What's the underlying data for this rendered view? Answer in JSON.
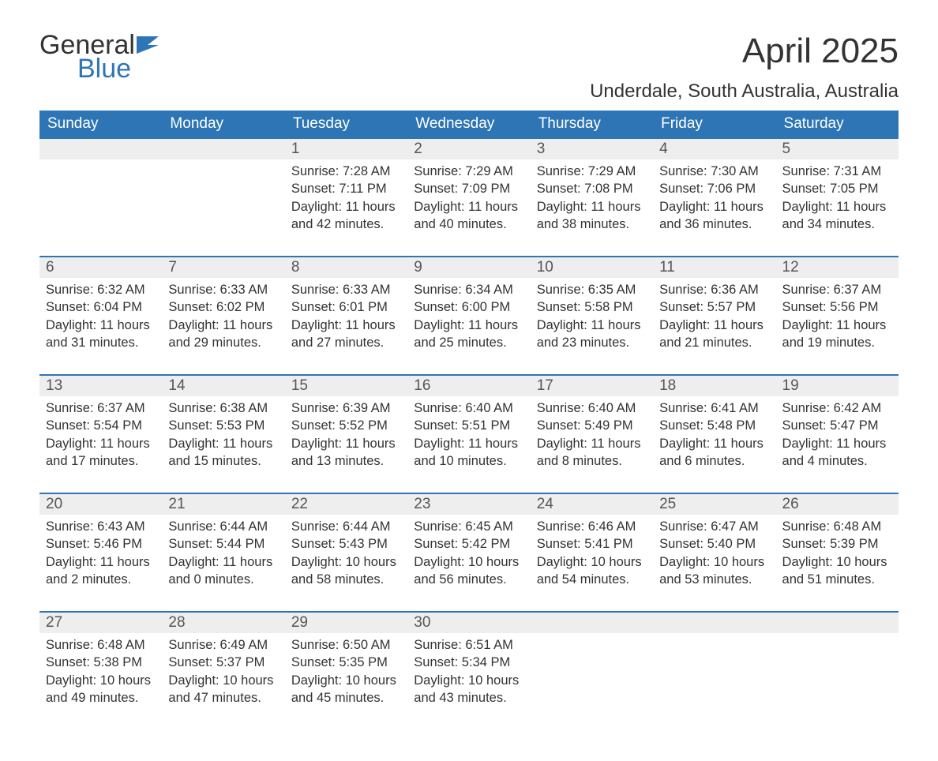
{
  "brand": {
    "word1": "General",
    "word2": "Blue",
    "text_color": "#333333",
    "accent_color": "#2e75b6"
  },
  "title": "April 2025",
  "location": "Underdale, South Australia, Australia",
  "colors": {
    "header_bg": "#2e75b6",
    "header_text": "#ffffff",
    "daynum_bg": "#eeeeee",
    "row_border": "#2e75b6",
    "body_text": "#333333",
    "page_bg": "#ffffff"
  },
  "weekdays": [
    "Sunday",
    "Monday",
    "Tuesday",
    "Wednesday",
    "Thursday",
    "Friday",
    "Saturday"
  ],
  "weeks": [
    [
      null,
      null,
      {
        "n": "1",
        "sunrise": "7:28 AM",
        "sunset": "7:11 PM",
        "daylight": "11 hours and 42 minutes."
      },
      {
        "n": "2",
        "sunrise": "7:29 AM",
        "sunset": "7:09 PM",
        "daylight": "11 hours and 40 minutes."
      },
      {
        "n": "3",
        "sunrise": "7:29 AM",
        "sunset": "7:08 PM",
        "daylight": "11 hours and 38 minutes."
      },
      {
        "n": "4",
        "sunrise": "7:30 AM",
        "sunset": "7:06 PM",
        "daylight": "11 hours and 36 minutes."
      },
      {
        "n": "5",
        "sunrise": "7:31 AM",
        "sunset": "7:05 PM",
        "daylight": "11 hours and 34 minutes."
      }
    ],
    [
      {
        "n": "6",
        "sunrise": "6:32 AM",
        "sunset": "6:04 PM",
        "daylight": "11 hours and 31 minutes."
      },
      {
        "n": "7",
        "sunrise": "6:33 AM",
        "sunset": "6:02 PM",
        "daylight": "11 hours and 29 minutes."
      },
      {
        "n": "8",
        "sunrise": "6:33 AM",
        "sunset": "6:01 PM",
        "daylight": "11 hours and 27 minutes."
      },
      {
        "n": "9",
        "sunrise": "6:34 AM",
        "sunset": "6:00 PM",
        "daylight": "11 hours and 25 minutes."
      },
      {
        "n": "10",
        "sunrise": "6:35 AM",
        "sunset": "5:58 PM",
        "daylight": "11 hours and 23 minutes."
      },
      {
        "n": "11",
        "sunrise": "6:36 AM",
        "sunset": "5:57 PM",
        "daylight": "11 hours and 21 minutes."
      },
      {
        "n": "12",
        "sunrise": "6:37 AM",
        "sunset": "5:56 PM",
        "daylight": "11 hours and 19 minutes."
      }
    ],
    [
      {
        "n": "13",
        "sunrise": "6:37 AM",
        "sunset": "5:54 PM",
        "daylight": "11 hours and 17 minutes."
      },
      {
        "n": "14",
        "sunrise": "6:38 AM",
        "sunset": "5:53 PM",
        "daylight": "11 hours and 15 minutes."
      },
      {
        "n": "15",
        "sunrise": "6:39 AM",
        "sunset": "5:52 PM",
        "daylight": "11 hours and 13 minutes."
      },
      {
        "n": "16",
        "sunrise": "6:40 AM",
        "sunset": "5:51 PM",
        "daylight": "11 hours and 10 minutes."
      },
      {
        "n": "17",
        "sunrise": "6:40 AM",
        "sunset": "5:49 PM",
        "daylight": "11 hours and 8 minutes."
      },
      {
        "n": "18",
        "sunrise": "6:41 AM",
        "sunset": "5:48 PM",
        "daylight": "11 hours and 6 minutes."
      },
      {
        "n": "19",
        "sunrise": "6:42 AM",
        "sunset": "5:47 PM",
        "daylight": "11 hours and 4 minutes."
      }
    ],
    [
      {
        "n": "20",
        "sunrise": "6:43 AM",
        "sunset": "5:46 PM",
        "daylight": "11 hours and 2 minutes."
      },
      {
        "n": "21",
        "sunrise": "6:44 AM",
        "sunset": "5:44 PM",
        "daylight": "11 hours and 0 minutes."
      },
      {
        "n": "22",
        "sunrise": "6:44 AM",
        "sunset": "5:43 PM",
        "daylight": "10 hours and 58 minutes."
      },
      {
        "n": "23",
        "sunrise": "6:45 AM",
        "sunset": "5:42 PM",
        "daylight": "10 hours and 56 minutes."
      },
      {
        "n": "24",
        "sunrise": "6:46 AM",
        "sunset": "5:41 PM",
        "daylight": "10 hours and 54 minutes."
      },
      {
        "n": "25",
        "sunrise": "6:47 AM",
        "sunset": "5:40 PM",
        "daylight": "10 hours and 53 minutes."
      },
      {
        "n": "26",
        "sunrise": "6:48 AM",
        "sunset": "5:39 PM",
        "daylight": "10 hours and 51 minutes."
      }
    ],
    [
      {
        "n": "27",
        "sunrise": "6:48 AM",
        "sunset": "5:38 PM",
        "daylight": "10 hours and 49 minutes."
      },
      {
        "n": "28",
        "sunrise": "6:49 AM",
        "sunset": "5:37 PM",
        "daylight": "10 hours and 47 minutes."
      },
      {
        "n": "29",
        "sunrise": "6:50 AM",
        "sunset": "5:35 PM",
        "daylight": "10 hours and 45 minutes."
      },
      {
        "n": "30",
        "sunrise": "6:51 AM",
        "sunset": "5:34 PM",
        "daylight": "10 hours and 43 minutes."
      },
      null,
      null,
      null
    ]
  ],
  "labels": {
    "sunrise": "Sunrise: ",
    "sunset": "Sunset: ",
    "daylight": "Daylight: "
  }
}
